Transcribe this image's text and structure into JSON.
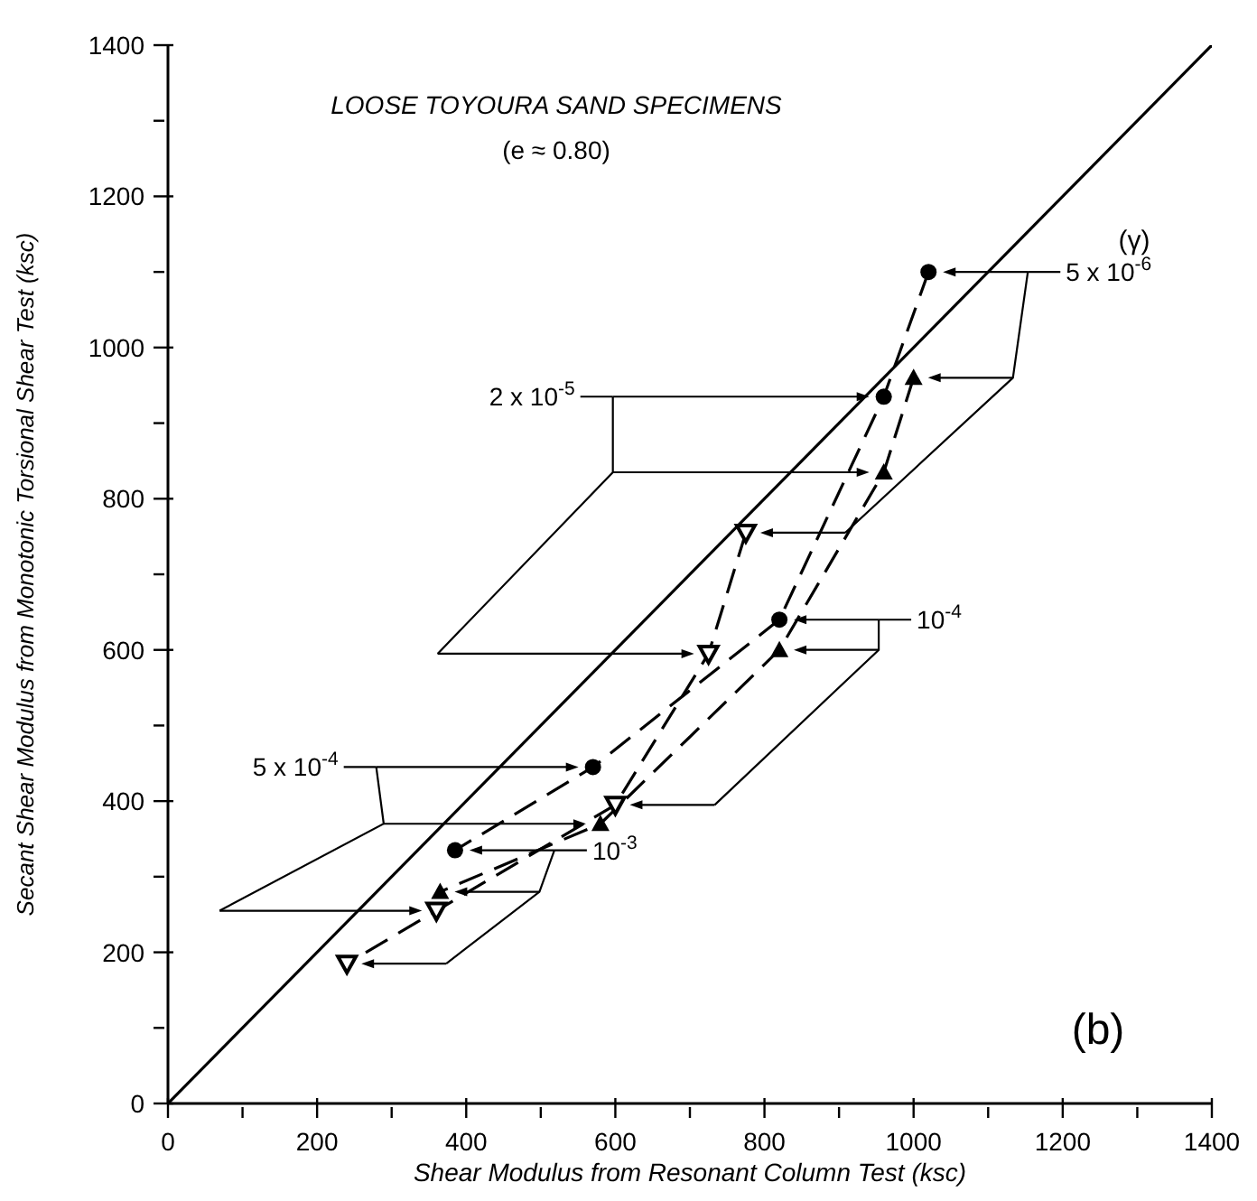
{
  "chart_data": {
    "type": "line",
    "title": "LOOSE TOYOURA SAND SPECIMENS",
    "subtitle": "(e ≈ 0.80)",
    "xlabel": "Shear Modulus from Resonant Column Test  (ksc)",
    "ylabel": "Secant Shear Modulus from Monotonic Torsional Shear Test (ksc)",
    "xlim": [
      0,
      1400
    ],
    "ylim": [
      0,
      1400
    ],
    "xticks": [
      0,
      {
        "value": 100,
        "label": null
      },
      200,
      {
        "value": 300,
        "label": null
      },
      400,
      {
        "value": 500,
        "label": null
      },
      600,
      {
        "value": 700,
        "label": null
      },
      800,
      {
        "value": 900,
        "label": null
      },
      1000,
      {
        "value": 1100,
        "label": null
      },
      1200,
      {
        "value": 1300,
        "label": null
      },
      1400
    ],
    "yticks": [
      0,
      {
        "value": 100,
        "label": null
      },
      200,
      {
        "value": 300,
        "label": null
      },
      400,
      {
        "value": 500,
        "label": null
      },
      600,
      {
        "value": 700,
        "label": null
      },
      800,
      {
        "value": 900,
        "label": null
      },
      1000,
      {
        "value": 1100,
        "label": null
      },
      1200,
      {
        "value": 1300,
        "label": null
      },
      1400
    ],
    "grid": false,
    "legend": false,
    "line_style": "dashed",
    "series": [
      {
        "color": "#000000",
        "marker": "circle",
        "x": [
          1020,
          960,
          820,
          570,
          385
        ],
        "values": [
          1100,
          935,
          640,
          445,
          335
        ]
      },
      {
        "color": "#000000",
        "marker": "triangle",
        "x": [
          1000,
          960,
          820,
          580,
          365
        ],
        "values": [
          960,
          835,
          600,
          370,
          280
        ]
      },
      {
        "color": "#000000",
        "marker": "triangle-down",
        "x": [
          775,
          725,
          600,
          360,
          240
        ],
        "values": [
          755,
          595,
          395,
          255,
          185
        ]
      },
      {
        "color": "#000000",
        "line_style": "solid",
        "marker": "none",
        "x": [
          0,
          1400
        ],
        "values": [
          0,
          1400
        ]
      }
    ],
    "annotations": [
      "(γ)",
      "(b)",
      "5 x 10$^{-6}$",
      "2 x 10$^{-5}$",
      "10$^{-4}$",
      "5 x 10$^{-4}$",
      "10$^{-3}$"
    ]
  }
}
